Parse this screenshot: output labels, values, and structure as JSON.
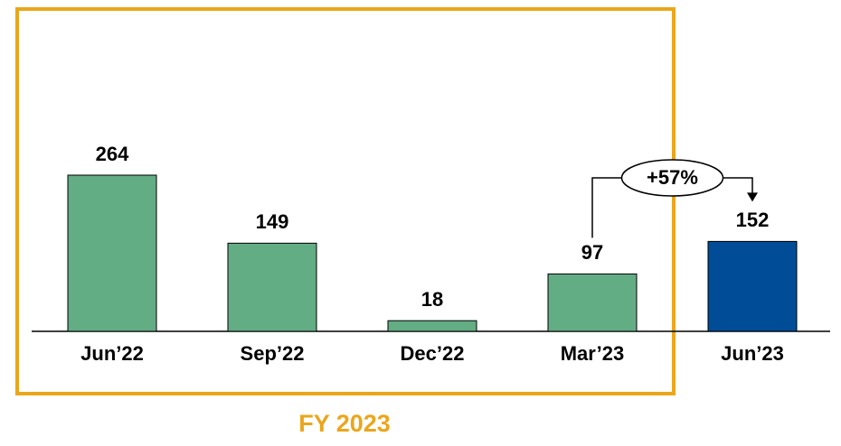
{
  "chart_data": {
    "type": "bar",
    "categories": [
      "Jun’22",
      "Sep’22",
      "Dec’22",
      "Mar’23",
      "Jun’23"
    ],
    "values": [
      264,
      149,
      18,
      97,
      152
    ],
    "colors": [
      "#63ad84",
      "#63ad84",
      "#63ad84",
      "#63ad84",
      "#004c97"
    ],
    "annotation": "+57%",
    "box_label": "FY 2023"
  }
}
